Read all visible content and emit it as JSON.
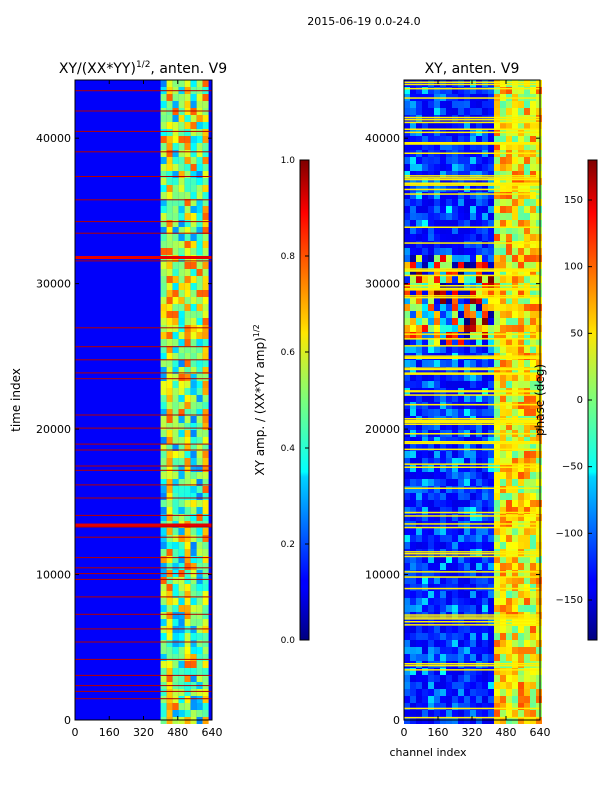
{
  "figure_title": "2015-06-19 0.0-24.0",
  "chart_data": [
    {
      "type": "heatmap",
      "title_prefix": "XY/(XX*YY)",
      "title_exponent": "1/2",
      "title_suffix": ", anten. V9",
      "xlabel": "",
      "ylabel": "time index",
      "xlim": [
        0,
        640
      ],
      "ylim": [
        0,
        44000
      ],
      "xticks": [
        0,
        160,
        320,
        480,
        640
      ],
      "yticks": [
        0,
        10000,
        20000,
        30000,
        40000
      ],
      "colorbar": {
        "label_prefix": "XY amp. / (XX*YY amp)",
        "label_exponent": "1/2",
        "range": [
          0.0,
          1.0
        ],
        "ticks": [
          "0.0",
          "0.2",
          "0.4",
          "0.6",
          "0.8",
          "1.0"
        ],
        "colormap": "jet"
      },
      "features": {
        "background_value": 0.12,
        "bright_band_channels": [
          400,
          600
        ],
        "flagged_rows_value": 1.0,
        "flagged_rows": [
          1500,
          2000,
          2400,
          3100,
          4200,
          5400,
          6300,
          7300,
          8500,
          9700,
          10100,
          10500,
          11200,
          12600,
          13300,
          13500,
          14100,
          15300,
          16200,
          17200,
          17500,
          18600,
          19000,
          20100,
          21000,
          23500,
          23900,
          24800,
          25700,
          27000,
          31600,
          31800,
          33500,
          34300,
          35800,
          37400,
          39100,
          40500,
          41900,
          43300
        ]
      }
    },
    {
      "type": "heatmap",
      "title": "XY, anten. V9",
      "xlabel": "channel index",
      "ylabel": "",
      "xlim": [
        0,
        640
      ],
      "ylim": [
        0,
        44000
      ],
      "xticks": [
        0,
        160,
        320,
        480,
        640
      ],
      "yticks": [
        0,
        10000,
        20000,
        30000,
        40000
      ],
      "colorbar": {
        "label": "phase (deg)",
        "range": [
          -180,
          180
        ],
        "ticks": [
          "150",
          "100",
          "50",
          "0",
          "−50",
          "−100",
          "−150"
        ],
        "tick_values": [
          150,
          100,
          50,
          0,
          -50,
          -100,
          -150
        ],
        "colormap": "jet"
      },
      "features": {
        "background_value_deg": -150,
        "bright_band_channels": [
          400,
          640
        ],
        "flagged_rows_value_deg": 50,
        "noisy_region_time": [
          26000,
          32000
        ]
      }
    }
  ]
}
